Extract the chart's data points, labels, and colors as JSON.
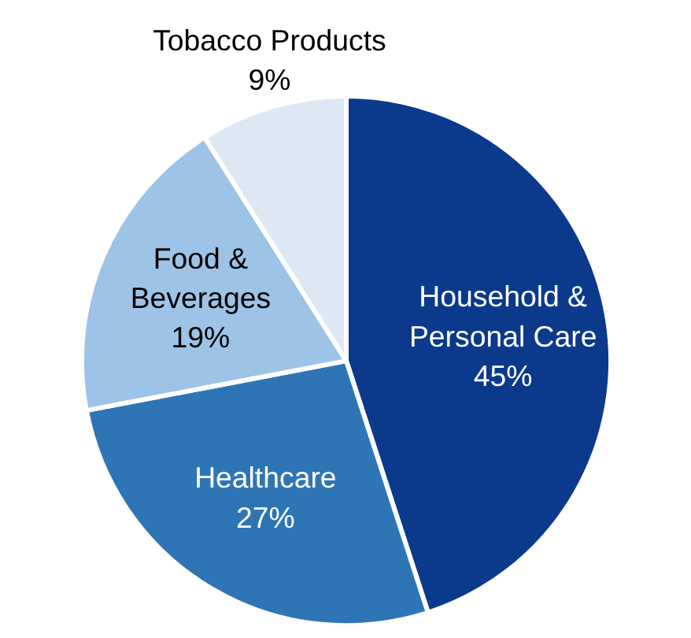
{
  "chart_data": {
    "type": "pie",
    "categories": [
      "Household & Personal Care",
      "Healthcare",
      "Food & Beverages",
      "Tobacco Products"
    ],
    "values": [
      45,
      27,
      19,
      9
    ],
    "colors": [
      "#0b3a8c",
      "#2e75b6",
      "#9dc3e6",
      "#dde8f4"
    ],
    "value_labels": [
      "45%",
      "27%",
      "19%",
      "9%"
    ]
  }
}
